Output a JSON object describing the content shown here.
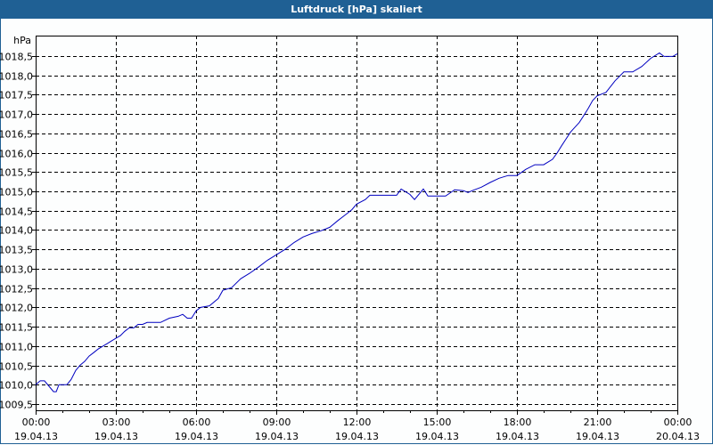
{
  "window": {
    "title": "Luftdruck [hPa] skaliert"
  },
  "colors": {
    "titlebar": "#1f6094",
    "line": "#0000c0",
    "grid": "#000000",
    "background": "#fdfefe"
  },
  "chart_data": {
    "type": "line",
    "title": "Luftdruck [hPa] skaliert",
    "xlabel": "",
    "ylabel": "hPa",
    "ylim": [
      1009.35,
      1018.9
    ],
    "xlim_hours": [
      0,
      24
    ],
    "grid": true,
    "y_ticks": [
      "1018,5",
      "1018,0",
      "1017,5",
      "1017,0",
      "1016,5",
      "1016,0",
      "1015,5",
      "1015,0",
      "1014,5",
      "1014,0",
      "1013,5",
      "1013,0",
      "1012,5",
      "1012,0",
      "1011,5",
      "1011,0",
      "1010,5",
      "1010,0",
      "1009,5"
    ],
    "y_tick_values": [
      1018.5,
      1018.0,
      1017.5,
      1017.0,
      1016.5,
      1016.0,
      1015.5,
      1015.0,
      1014.5,
      1014.0,
      1013.5,
      1013.0,
      1012.5,
      1012.0,
      1011.5,
      1011.0,
      1010.5,
      1010.0,
      1009.5
    ],
    "x_ticks": [
      {
        "time": "00:00",
        "date": "19.04.13",
        "hour": 0
      },
      {
        "time": "03:00",
        "date": "19.04.13",
        "hour": 3
      },
      {
        "time": "06:00",
        "date": "19.04.13",
        "hour": 6
      },
      {
        "time": "09:00",
        "date": "19.04.13",
        "hour": 9
      },
      {
        "time": "12:00",
        "date": "19.04.13",
        "hour": 12
      },
      {
        "time": "15:00",
        "date": "19.04.13",
        "hour": 15
      },
      {
        "time": "18:00",
        "date": "19.04.13",
        "hour": 18
      },
      {
        "time": "21:00",
        "date": "19.04.13",
        "hour": 21
      },
      {
        "time": "00:00",
        "date": "20.04.13",
        "hour": 24
      }
    ],
    "series": [
      {
        "name": "Luftdruck",
        "x_hours": [
          0,
          0.17,
          0.33,
          0.5,
          0.67,
          0.77,
          0.87,
          1.17,
          1.33,
          1.5,
          1.67,
          1.83,
          2,
          2.17,
          2.33,
          2.5,
          2.67,
          2.83,
          3,
          3.17,
          3.33,
          3.5,
          3.67,
          3.83,
          4,
          4.17,
          4.33,
          4.67,
          5,
          5.33,
          5.5,
          5.67,
          5.83,
          6,
          6.17,
          6.5,
          6.83,
          7,
          7.33,
          7.67,
          8,
          8.33,
          8.67,
          9,
          9.33,
          9.67,
          10,
          10.33,
          10.67,
          11,
          11.33,
          11.67,
          11.83,
          12,
          12.33,
          12.5,
          13,
          13.33,
          13.5,
          13.67,
          14,
          14.17,
          14.5,
          14.67,
          15,
          15.33,
          15.67,
          16,
          16.17,
          16.33,
          16.67,
          17,
          17.33,
          17.67,
          18,
          18.33,
          18.67,
          19,
          19.33,
          19.5,
          19.67,
          20,
          20.17,
          20.33,
          20.5,
          20.67,
          20.83,
          21,
          21.33,
          21.67,
          22,
          22.33,
          22.67,
          23,
          23.33,
          23.5,
          23.83,
          24
        ],
        "values": [
          1010.0,
          1010.1,
          1010.1,
          1009.96,
          1009.82,
          1009.82,
          1010.0,
          1010.0,
          1010.14,
          1010.37,
          1010.51,
          1010.6,
          1010.74,
          1010.83,
          1010.92,
          1010.99,
          1011.06,
          1011.13,
          1011.2,
          1011.27,
          1011.38,
          1011.47,
          1011.47,
          1011.56,
          1011.56,
          1011.61,
          1011.61,
          1011.61,
          1011.72,
          1011.77,
          1011.82,
          1011.72,
          1011.72,
          1011.91,
          1012.0,
          1012.04,
          1012.23,
          1012.44,
          1012.51,
          1012.74,
          1012.88,
          1013.04,
          1013.22,
          1013.36,
          1013.5,
          1013.68,
          1013.82,
          1013.91,
          1013.98,
          1014.07,
          1014.26,
          1014.44,
          1014.53,
          1014.67,
          1014.79,
          1014.9,
          1014.9,
          1014.9,
          1014.9,
          1015.06,
          1014.92,
          1014.79,
          1015.06,
          1014.88,
          1014.88,
          1014.88,
          1015.04,
          1015.02,
          1014.97,
          1015.02,
          1015.11,
          1015.23,
          1015.34,
          1015.41,
          1015.41,
          1015.57,
          1015.69,
          1015.69,
          1015.83,
          1015.99,
          1016.18,
          1016.53,
          1016.66,
          1016.78,
          1016.96,
          1017.15,
          1017.35,
          1017.47,
          1017.56,
          1017.86,
          1018.09,
          1018.09,
          1018.23,
          1018.44,
          1018.58,
          1018.49,
          1018.49,
          1018.56
        ]
      }
    ]
  }
}
